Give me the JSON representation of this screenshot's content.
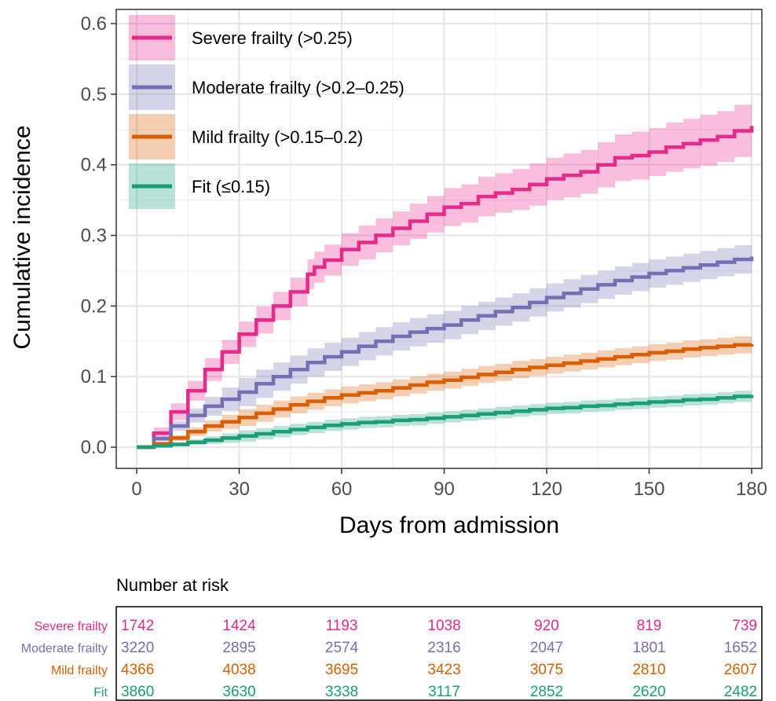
{
  "chart_data": {
    "type": "line",
    "xlabel": "Days from admission",
    "ylabel": "Cumulative incidence",
    "xlim": [
      -6,
      183
    ],
    "ylim": [
      -0.03,
      0.62
    ],
    "x_ticks": [
      0,
      30,
      60,
      90,
      120,
      150,
      180
    ],
    "y_ticks": [
      0.0,
      0.1,
      0.2,
      0.3,
      0.4,
      0.5,
      0.6
    ],
    "x_tick_labels": [
      "0",
      "30",
      "60",
      "90",
      "120",
      "150",
      "180"
    ],
    "y_tick_labels": [
      "0.0",
      "0.1",
      "0.2",
      "0.3",
      "0.4",
      "0.5",
      "0.6"
    ],
    "grid": true,
    "legend_position": "top-left",
    "series": [
      {
        "name": "Severe frailty (>0.25)",
        "color": "#E7298A",
        "x": [
          0,
          5,
          10,
          15,
          20,
          25,
          30,
          35,
          40,
          45,
          50,
          52,
          55,
          60,
          65,
          70,
          75,
          80,
          85,
          90,
          95,
          100,
          105,
          110,
          115,
          120,
          125,
          130,
          135,
          140,
          145,
          150,
          155,
          160,
          165,
          170,
          175,
          180
        ],
        "values": [
          0.0,
          0.02,
          0.05,
          0.08,
          0.11,
          0.135,
          0.16,
          0.18,
          0.2,
          0.22,
          0.245,
          0.255,
          0.265,
          0.28,
          0.29,
          0.3,
          0.31,
          0.32,
          0.33,
          0.34,
          0.345,
          0.355,
          0.36,
          0.365,
          0.372,
          0.38,
          0.385,
          0.39,
          0.4,
          0.41,
          0.413,
          0.418,
          0.425,
          0.43,
          0.435,
          0.44,
          0.448,
          0.455
        ],
        "lower": [
          0.0,
          0.012,
          0.038,
          0.066,
          0.094,
          0.118,
          0.142,
          0.161,
          0.18,
          0.2,
          0.224,
          0.233,
          0.243,
          0.257,
          0.266,
          0.276,
          0.286,
          0.295,
          0.304,
          0.313,
          0.318,
          0.327,
          0.332,
          0.336,
          0.342,
          0.35,
          0.354,
          0.359,
          0.368,
          0.377,
          0.379,
          0.384,
          0.39,
          0.395,
          0.399,
          0.404,
          0.411,
          0.418
        ],
        "upper": [
          0.0,
          0.028,
          0.062,
          0.094,
          0.126,
          0.152,
          0.178,
          0.199,
          0.22,
          0.24,
          0.266,
          0.277,
          0.287,
          0.303,
          0.314,
          0.324,
          0.334,
          0.345,
          0.356,
          0.367,
          0.372,
          0.383,
          0.388,
          0.394,
          0.402,
          0.41,
          0.416,
          0.421,
          0.432,
          0.443,
          0.447,
          0.452,
          0.46,
          0.465,
          0.471,
          0.476,
          0.485,
          0.492
        ]
      },
      {
        "name": "Moderate frailty (>0.2–0.25)",
        "color": "#7570B3",
        "x": [
          0,
          5,
          10,
          15,
          20,
          25,
          30,
          35,
          40,
          45,
          50,
          55,
          60,
          65,
          70,
          75,
          80,
          85,
          90,
          95,
          100,
          105,
          110,
          115,
          120,
          125,
          130,
          135,
          140,
          145,
          150,
          155,
          160,
          165,
          170,
          175,
          180
        ],
        "values": [
          0.0,
          0.012,
          0.03,
          0.045,
          0.058,
          0.068,
          0.078,
          0.09,
          0.1,
          0.11,
          0.12,
          0.128,
          0.135,
          0.143,
          0.15,
          0.157,
          0.163,
          0.168,
          0.173,
          0.18,
          0.186,
          0.192,
          0.198,
          0.205,
          0.212,
          0.218,
          0.224,
          0.23,
          0.236,
          0.241,
          0.246,
          0.25,
          0.254,
          0.258,
          0.262,
          0.266,
          0.27
        ]
      },
      {
        "name": "Mild frailty (>0.15–0.2)",
        "color": "#D95F02",
        "x": [
          0,
          5,
          10,
          15,
          20,
          25,
          30,
          35,
          40,
          45,
          50,
          55,
          60,
          65,
          70,
          75,
          80,
          85,
          90,
          95,
          100,
          105,
          110,
          115,
          120,
          125,
          130,
          135,
          140,
          145,
          150,
          155,
          160,
          165,
          170,
          175,
          180
        ],
        "values": [
          0.0,
          0.005,
          0.013,
          0.022,
          0.03,
          0.036,
          0.042,
          0.048,
          0.054,
          0.06,
          0.065,
          0.07,
          0.074,
          0.077,
          0.08,
          0.084,
          0.088,
          0.092,
          0.095,
          0.099,
          0.103,
          0.106,
          0.11,
          0.113,
          0.116,
          0.119,
          0.122,
          0.125,
          0.128,
          0.131,
          0.134,
          0.136,
          0.139,
          0.141,
          0.143,
          0.145,
          0.146
        ]
      },
      {
        "name": "Fit (≤0.15)",
        "color": "#1B9E77",
        "x": [
          0,
          5,
          10,
          15,
          20,
          25,
          30,
          35,
          40,
          45,
          50,
          55,
          60,
          65,
          70,
          75,
          80,
          85,
          90,
          95,
          100,
          105,
          110,
          115,
          120,
          125,
          130,
          135,
          140,
          145,
          150,
          155,
          160,
          165,
          170,
          175,
          180
        ],
        "values": [
          0.0,
          0.002,
          0.004,
          0.007,
          0.01,
          0.013,
          0.016,
          0.019,
          0.022,
          0.025,
          0.028,
          0.031,
          0.033,
          0.035,
          0.036,
          0.038,
          0.039,
          0.041,
          0.043,
          0.045,
          0.047,
          0.049,
          0.051,
          0.053,
          0.055,
          0.056,
          0.058,
          0.059,
          0.061,
          0.062,
          0.064,
          0.065,
          0.067,
          0.068,
          0.07,
          0.072,
          0.074
        ]
      }
    ]
  },
  "risk_table": {
    "title": "Number at risk",
    "times": [
      0,
      30,
      60,
      90,
      120,
      150,
      180
    ],
    "rows": [
      {
        "label": "Severe frailty",
        "color": "#E7298A",
        "values": [
          "1742",
          "1424",
          "1193",
          "1038",
          "920",
          "819",
          "739"
        ]
      },
      {
        "label": "Moderate frailty",
        "color": "#7570B3",
        "values": [
          "3220",
          "2895",
          "2574",
          "2316",
          "2047",
          "1801",
          "1652"
        ]
      },
      {
        "label": "Mild frailty",
        "color": "#D95F02",
        "values": [
          "4366",
          "4038",
          "3695",
          "3423",
          "3075",
          "2810",
          "2607"
        ]
      },
      {
        "label": "Fit",
        "color": "#1B9E77",
        "values": [
          "3860",
          "3630",
          "3338",
          "3117",
          "2852",
          "2620",
          "2482"
        ]
      }
    ]
  }
}
